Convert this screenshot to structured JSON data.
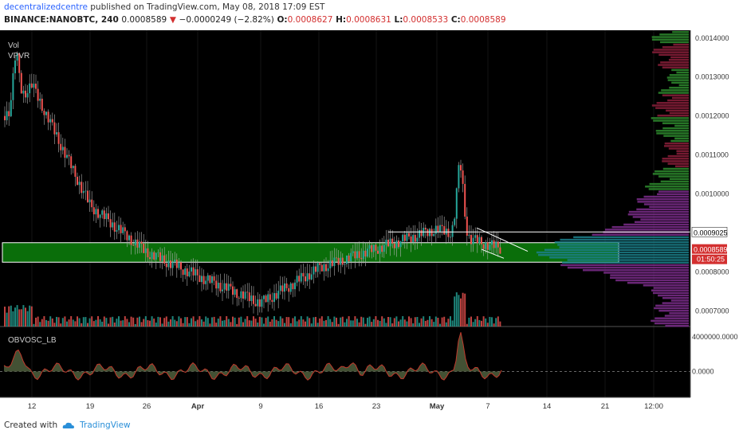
{
  "header": {
    "author": "decentralizedcentre",
    "published_text": "published on TradingView.com, May 08, 2018 17:09 EST",
    "symbol": "BINANCE:NANOBTC, 240",
    "last": "0.0008589",
    "arrow": "▼",
    "change": "−0.0000249 (−2.82%)",
    "o_label": "O:",
    "o": "0.0008627",
    "h_label": "H:",
    "h": "0.0008631",
    "l_label": "L:",
    "l": "0.0008533",
    "c_label": "C:",
    "c": "0.0008589"
  },
  "indicators": {
    "vol": "Vol",
    "vpvr": "VPVR",
    "osc": "OBVOSC_LB"
  },
  "footer": {
    "created_with": "Created with",
    "brand": "TradingView"
  },
  "colors": {
    "bg": "#000000",
    "up": "#26a69a",
    "down": "#ef5350",
    "wick": "#b0b0b0",
    "zone": "#0a6e0a",
    "vpvr_up": "#1b7f8a",
    "vpvr_down": "#8a1f3a",
    "vpvr_purple": "#7b2d8b",
    "vpvr_green": "#2e8b2e",
    "osc_line": "#c0392b",
    "osc_fill": "#4a5a3a",
    "price_badge": "#d32f2f"
  },
  "chart_data": [
    {
      "type": "candlestick",
      "symbol": "BINANCE:NANOBTC",
      "interval": "240",
      "x_ticks": [
        "12",
        "19",
        "26",
        "Apr",
        "9",
        "16",
        "23",
        "May",
        "7",
        "14",
        "21",
        "12:00"
      ],
      "y_ticks": [
        "0.0014000",
        "0.0013000",
        "0.0012000",
        "0.0011000",
        "0.0010000",
        "0.0009025",
        "0.0008589",
        "0.0008000",
        "0.0007000"
      ],
      "ylim": [
        0.00066,
        0.00142
      ],
      "close_path_by_tick": [
        {
          "tick": "start",
          "close": 0.0012
        },
        {
          "tick": "12",
          "close": 0.00128
        },
        {
          "tick": "19",
          "close": 0.00097
        },
        {
          "tick": "26",
          "close": 0.00085
        },
        {
          "tick": "Apr",
          "close": 0.00079
        },
        {
          "tick": "9",
          "close": 0.00072
        },
        {
          "tick": "16",
          "close": 0.00081
        },
        {
          "tick": "23",
          "close": 0.00086
        },
        {
          "tick": "May",
          "close": 0.00091
        },
        {
          "tick": "7",
          "close": 0.00087
        },
        {
          "tick": "last",
          "close": 0.0008589
        }
      ],
      "support_zone": [
        0.000825,
        0.000875
      ],
      "resistance_line": 0.0009025,
      "last_price": 0.0008589,
      "countdown": "01:50:25",
      "indicators": [
        "Vol",
        "VPVR"
      ]
    },
    {
      "type": "area",
      "title": "OBVOSC_LB",
      "y_ticks": [
        "4000000.0000",
        "0.0000"
      ],
      "ylim": [
        -3000000,
        5200000
      ],
      "zero_line": 0
    }
  ]
}
